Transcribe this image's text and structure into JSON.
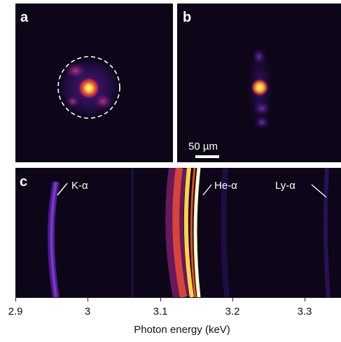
{
  "panels": {
    "a": {
      "label": "a"
    },
    "b": {
      "label": "b",
      "scale_bar_text": "50 µm"
    },
    "c": {
      "label": "c"
    }
  },
  "spectrum_lines": [
    {
      "label": "K-α",
      "energy_keV": 2.96
    },
    {
      "label": "He-α",
      "energy_keV": 3.14
    },
    {
      "label": "Ly-α",
      "energy_keV": 3.32
    }
  ],
  "colors": {
    "background": "#0c0618",
    "colormap_low": "#3b0f70",
    "colormap_mid": "#e3501e",
    "colormap_high": "#fffbd0"
  },
  "chart_data": {
    "type": "heatmap",
    "xlabel": "Photon energy (keV)",
    "xlim": [
      2.9,
      3.35
    ],
    "xticks": [
      2.9,
      3,
      3.1,
      3.2,
      3.3
    ],
    "xtick_labels": [
      "2.9",
      "3",
      "3.1",
      "3.2",
      "3.3"
    ]
  }
}
